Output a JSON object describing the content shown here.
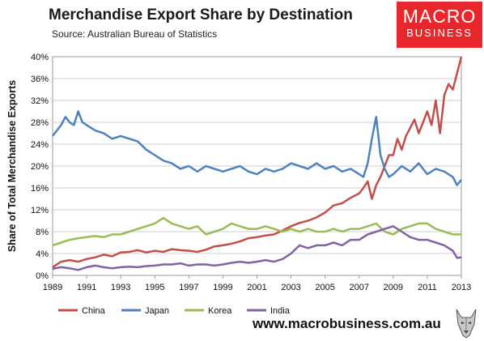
{
  "header": {
    "title": "Merchandise Export Share by Destination",
    "source": "Source:  Australian Bureau of Statistics"
  },
  "logo": {
    "line1": "MACRO",
    "line2": "BUSINESS",
    "bg_color": "#e8262c"
  },
  "footer": {
    "website": "www.macrobusiness.com.au",
    "icon": "wolf-head-icon"
  },
  "chart_data": {
    "type": "line",
    "ylabel": "Share of Total Merchandise Exports",
    "xlabel": "",
    "xlim": [
      1989,
      2013
    ],
    "ylim": [
      0,
      40
    ],
    "y_ticks": [
      "0%",
      "4%",
      "8%",
      "12%",
      "16%",
      "20%",
      "24%",
      "28%",
      "32%",
      "36%",
      "40%"
    ],
    "x_ticks": [
      "1989",
      "1991",
      "1993",
      "1995",
      "1997",
      "1999",
      "2001",
      "2003",
      "2005",
      "2007",
      "2009",
      "2011",
      "2013"
    ],
    "grid": true,
    "legend_position": "bottom-left",
    "series": [
      {
        "name": "China",
        "color": "#c0504d",
        "x": [
          1989,
          1989.5,
          1990,
          1990.5,
          1991,
          1991.5,
          1992,
          1992.5,
          1993,
          1993.5,
          1994,
          1994.5,
          1995,
          1995.5,
          1996,
          1996.5,
          1997,
          1997.5,
          1998,
          1998.5,
          1999,
          1999.5,
          2000,
          2000.5,
          2001,
          2001.5,
          2002,
          2002.5,
          2003,
          2003.5,
          2004,
          2004.5,
          2005,
          2005.5,
          2006,
          2006.5,
          2007,
          2007.25,
          2007.5,
          2007.75,
          2008,
          2008.25,
          2008.5,
          2008.75,
          2009,
          2009.25,
          2009.5,
          2009.75,
          2010,
          2010.25,
          2010.5,
          2010.75,
          2011,
          2011.25,
          2011.5,
          2011.75,
          2012,
          2012.25,
          2012.5,
          2012.75,
          2013
        ],
        "y": [
          1.5,
          2.5,
          2.8,
          2.5,
          3.0,
          3.3,
          3.8,
          3.5,
          4.2,
          4.3,
          4.6,
          4.2,
          4.5,
          4.3,
          4.8,
          4.6,
          4.5,
          4.3,
          4.7,
          5.3,
          5.5,
          5.8,
          6.2,
          6.8,
          7.0,
          7.3,
          7.5,
          8.2,
          9.0,
          9.6,
          10.0,
          10.6,
          11.5,
          12.8,
          13.2,
          14.2,
          15.0,
          16.0,
          17.2,
          14.0,
          16.5,
          18.0,
          20.0,
          22.0,
          22.0,
          25.0,
          23.0,
          25.5,
          27.0,
          28.5,
          26.0,
          28.0,
          30.0,
          27.5,
          32.0,
          26.0,
          33.0,
          35.0,
          34.0,
          37.0,
          40.0
        ]
      },
      {
        "name": "Japan",
        "color": "#4f81bd",
        "x": [
          1989,
          1989.25,
          1989.5,
          1989.75,
          1990,
          1990.25,
          1990.5,
          1990.75,
          1991,
          1991.5,
          1992,
          1992.5,
          1993,
          1993.5,
          1994,
          1994.5,
          1995,
          1995.5,
          1996,
          1996.5,
          1997,
          1997.5,
          1998,
          1998.5,
          1999,
          1999.5,
          2000,
          2000.5,
          2001,
          2001.5,
          2002,
          2002.5,
          2003,
          2003.5,
          2004,
          2004.5,
          2005,
          2005.5,
          2006,
          2006.5,
          2007,
          2007.25,
          2007.5,
          2007.75,
          2008,
          2008.25,
          2008.5,
          2008.75,
          2009,
          2009.5,
          2010,
          2010.5,
          2011,
          2011.5,
          2012,
          2012.5,
          2012.75,
          2013
        ],
        "y": [
          25.5,
          26.5,
          27.5,
          29.0,
          28.0,
          27.5,
          30.0,
          28.0,
          27.5,
          26.5,
          26.0,
          25.0,
          25.5,
          25.0,
          24.5,
          23.0,
          22.0,
          21.0,
          20.5,
          19.5,
          20.0,
          19.0,
          20.0,
          19.5,
          19.0,
          19.5,
          20.0,
          19.0,
          18.5,
          19.5,
          19.0,
          19.5,
          20.5,
          20.0,
          19.5,
          20.5,
          19.5,
          20.0,
          19.0,
          19.5,
          18.5,
          18.0,
          20.5,
          25.0,
          29.0,
          22.0,
          19.5,
          18.0,
          18.5,
          20.0,
          19.0,
          20.5,
          18.5,
          19.5,
          19.0,
          18.0,
          16.5,
          17.5
        ]
      },
      {
        "name": "Korea",
        "color": "#9bbb59",
        "x": [
          1989,
          1989.5,
          1990,
          1990.5,
          1991,
          1991.5,
          1992,
          1992.5,
          1993,
          1993.5,
          1994,
          1994.5,
          1995,
          1995.5,
          1996,
          1996.5,
          1997,
          1997.5,
          1998,
          1998.5,
          1999,
          1999.5,
          2000,
          2000.5,
          2001,
          2001.5,
          2002,
          2002.5,
          2003,
          2003.5,
          2004,
          2004.5,
          2005,
          2005.5,
          2006,
          2006.5,
          2007,
          2007.5,
          2008,
          2008.5,
          2009,
          2009.5,
          2010,
          2010.5,
          2011,
          2011.5,
          2012,
          2012.5,
          2013
        ],
        "y": [
          5.5,
          6.0,
          6.5,
          6.8,
          7.0,
          7.2,
          7.0,
          7.5,
          7.5,
          8.0,
          8.5,
          9.0,
          9.5,
          10.5,
          9.5,
          9.0,
          8.5,
          9.0,
          7.5,
          8.0,
          8.5,
          9.5,
          9.0,
          8.5,
          8.5,
          9.0,
          8.5,
          8.0,
          8.5,
          8.0,
          8.5,
          8.0,
          8.0,
          8.5,
          8.0,
          8.5,
          8.5,
          9.0,
          9.5,
          8.0,
          7.5,
          8.5,
          9.0,
          9.5,
          9.5,
          8.5,
          8.0,
          7.5,
          7.5
        ]
      },
      {
        "name": "India",
        "color": "#8064a2",
        "x": [
          1989,
          1989.5,
          1990,
          1990.5,
          1991,
          1991.5,
          1992,
          1992.5,
          1993,
          1993.5,
          1994,
          1994.5,
          1995,
          1995.5,
          1996,
          1996.5,
          1997,
          1997.5,
          1998,
          1998.5,
          1999,
          1999.5,
          2000,
          2000.5,
          2001,
          2001.5,
          2002,
          2002.5,
          2003,
          2003.5,
          2004,
          2004.5,
          2005,
          2005.5,
          2006,
          2006.5,
          2007,
          2007.5,
          2008,
          2008.5,
          2009,
          2009.5,
          2010,
          2010.5,
          2011,
          2011.5,
          2012,
          2012.5,
          2012.75,
          2013
        ],
        "y": [
          1.2,
          1.5,
          1.3,
          1.0,
          1.5,
          1.8,
          1.5,
          1.3,
          1.5,
          1.6,
          1.5,
          1.7,
          1.8,
          2.0,
          2.0,
          2.2,
          1.8,
          2.0,
          2.0,
          1.8,
          2.0,
          2.3,
          2.5,
          2.3,
          2.5,
          2.8,
          2.5,
          3.0,
          4.0,
          5.5,
          5.0,
          5.5,
          5.5,
          6.0,
          5.5,
          6.5,
          6.5,
          7.5,
          8.0,
          8.5,
          9.0,
          8.0,
          7.0,
          6.5,
          6.5,
          6.0,
          5.5,
          4.5,
          3.2,
          3.3
        ]
      }
    ]
  }
}
